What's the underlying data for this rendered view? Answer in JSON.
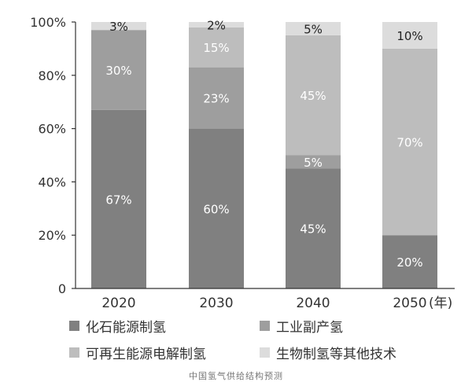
{
  "chart_data": {
    "type": "bar",
    "stacked": true,
    "categories": [
      "2020",
      "2030",
      "2040",
      "2050"
    ],
    "x_unit_label": "(年)",
    "y_ticks": [
      "0",
      "20%",
      "40%",
      "60%",
      "80%",
      "100%"
    ],
    "ylim": [
      0,
      100
    ],
    "grid": false,
    "legend_position": "bottom",
    "series": [
      {
        "name": "化石能源制氢",
        "color": "#808080",
        "values": [
          67,
          60,
          45,
          20
        ],
        "labels": [
          "67%",
          "60%",
          "45%",
          "20%"
        ],
        "label_color": "#ffffff"
      },
      {
        "name": "工业副产氢",
        "color": "#9e9e9e",
        "values": [
          30,
          23,
          5,
          0
        ],
        "labels": [
          "30%",
          "23%",
          "5%",
          ""
        ],
        "label_color": "#ffffff"
      },
      {
        "name": "可再生能源电解制氢",
        "color": "#bdbdbd",
        "values": [
          0,
          15,
          45,
          70
        ],
        "labels": [
          "",
          "15%",
          "45%",
          "70%"
        ],
        "label_color": "#ffffff"
      },
      {
        "name": "生物制氢等其他技术",
        "color": "#dcdcdc",
        "values": [
          3,
          2,
          5,
          10
        ],
        "labels": [
          "3%",
          "2%",
          "5%",
          "10%"
        ],
        "label_color": "#222222"
      }
    ]
  },
  "caption": "中国氢气供给结构预测"
}
